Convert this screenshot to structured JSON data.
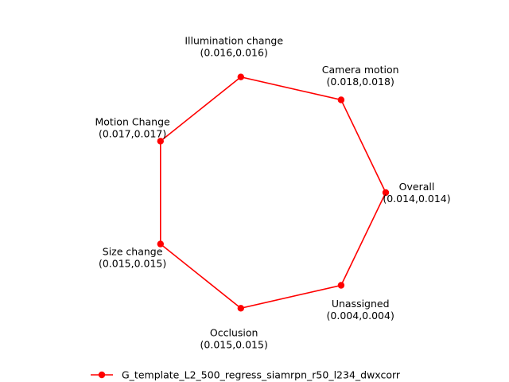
{
  "chart_data": {
    "type": "radar",
    "closed": true,
    "axes": [
      {
        "name": "Overall",
        "value_label": "(0.014,0.014)",
        "values": [
          0.014,
          0.014
        ]
      },
      {
        "name": "Camera motion",
        "value_label": "(0.018,0.018)",
        "values": [
          0.018,
          0.018
        ]
      },
      {
        "name": "Illumination change",
        "value_label": "(0.016,0.016)",
        "values": [
          0.016,
          0.016
        ]
      },
      {
        "name": "Motion Change",
        "value_label": "(0.017,0.017)",
        "values": [
          0.017,
          0.017
        ]
      },
      {
        "name": "Size change",
        "value_label": "(0.015,0.015)",
        "values": [
          0.015,
          0.015
        ]
      },
      {
        "name": "Occlusion",
        "value_label": "(0.015,0.015)",
        "values": [
          0.015,
          0.015
        ]
      },
      {
        "name": "Unassigned",
        "value_label": "(0.004,0.004)",
        "values": [
          0.004,
          0.004
        ]
      }
    ],
    "series": [
      {
        "name": "G_template_L2_500_regress_siamrpn_r50_l234_dwxcorr",
        "color": "#ff0000",
        "marker": "circle",
        "normalized": true
      }
    ],
    "legend": "bottom-center",
    "grid": false
  }
}
